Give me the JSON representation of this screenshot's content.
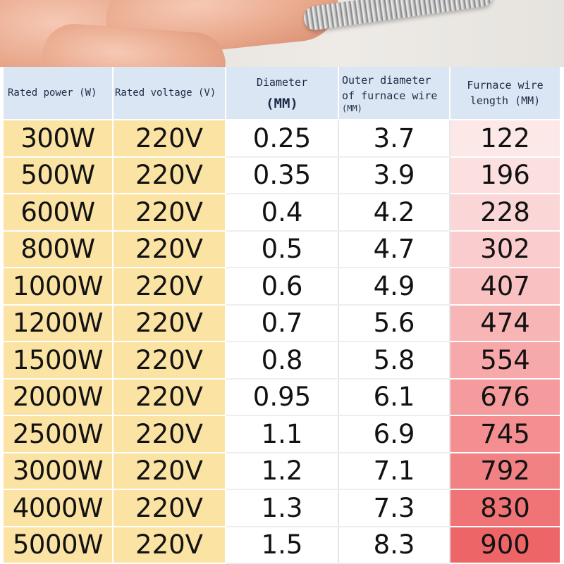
{
  "headers": {
    "rated_power": "Rated power (W)",
    "rated_voltage": "Rated voltage (V)",
    "diameter_line1": "Diameter",
    "diameter_line2": "(MM)",
    "outer_line1": "Outer diameter",
    "outer_line2": "of furnace wire",
    "outer_line3": "(MM)",
    "length_line1": "Furnace wire",
    "length_line2": "length (MM)"
  },
  "rows": [
    {
      "power": "300W",
      "voltage": "220V",
      "diameter": "0.25",
      "outer_diameter": "3.7",
      "length": "122",
      "shade": "#fde8e8"
    },
    {
      "power": "500W",
      "voltage": "220V",
      "diameter": "0.35",
      "outer_diameter": "3.9",
      "length": "196",
      "shade": "#fce0e0"
    },
    {
      "power": "600W",
      "voltage": "220V",
      "diameter": "0.4",
      "outer_diameter": "4.2",
      "length": "228",
      "shade": "#fbd6d7"
    },
    {
      "power": "800W",
      "voltage": "220V",
      "diameter": "0.5",
      "outer_diameter": "4.7",
      "length": "302",
      "shade": "#facccd"
    },
    {
      "power": "1000W",
      "voltage": "220V",
      "diameter": "0.6",
      "outer_diameter": "4.9",
      "length": "407",
      "shade": "#f9c1c2"
    },
    {
      "power": "1200W",
      "voltage": "220V",
      "diameter": "0.7",
      "outer_diameter": "5.6",
      "length": "474",
      "shade": "#f8b5b6"
    },
    {
      "power": "1500W",
      "voltage": "220V",
      "diameter": "0.8",
      "outer_diameter": "5.8",
      "length": "554",
      "shade": "#f7a8aa"
    },
    {
      "power": "2000W",
      "voltage": "220V",
      "diameter": "0.95",
      "outer_diameter": "6.1",
      "length": "676",
      "shade": "#f59b9d"
    },
    {
      "power": "2500W",
      "voltage": "220V",
      "diameter": "1.1",
      "outer_diameter": "6.9",
      "length": "745",
      "shade": "#f48e90"
    },
    {
      "power": "3000W",
      "voltage": "220V",
      "diameter": "1.2",
      "outer_diameter": "7.1",
      "length": "792",
      "shade": "#f28183"
    },
    {
      "power": "4000W",
      "voltage": "220V",
      "diameter": "1.3",
      "outer_diameter": "7.3",
      "length": "830",
      "shade": "#f07375"
    },
    {
      "power": "5000W",
      "voltage": "220V",
      "diameter": "1.5",
      "outer_diameter": "8.3",
      "length": "900",
      "shade": "#ee6567"
    }
  ],
  "colors": {
    "power_voltage_bg": "#fbe3a3",
    "header_bg": "#dbe6f4"
  }
}
